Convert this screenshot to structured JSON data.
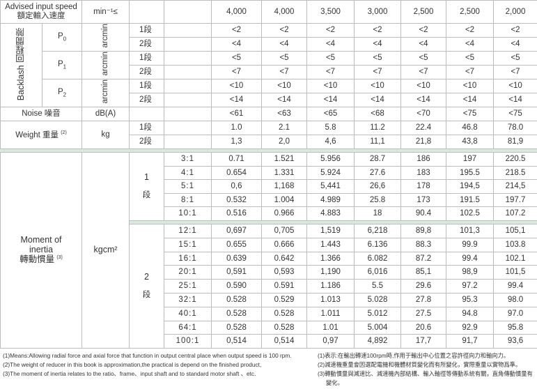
{
  "speed": {
    "label_en": "Advised input speed",
    "label_zh": "額定輸入速度",
    "unit": "min⁻¹≤",
    "values": [
      "4,000",
      "4,000",
      "3,500",
      "3,000",
      "2,500",
      "2,500",
      "2,000"
    ]
  },
  "backlash": {
    "label": "Backlash  回程間隙",
    "groups": [
      {
        "name": "P",
        "sub": "0",
        "unit": "arcmin",
        "rows": [
          {
            "stage": "1段",
            "values": [
              "<2",
              "<2",
              "<2",
              "<2",
              "<2",
              "<2",
              "<2"
            ]
          },
          {
            "stage": "2段",
            "values": [
              "<4",
              "<4",
              "<4",
              "<4",
              "<4",
              "<4",
              "<4"
            ]
          }
        ]
      },
      {
        "name": "P",
        "sub": "1",
        "unit": "arcmin",
        "rows": [
          {
            "stage": "1段",
            "values": [
              "<5",
              "<5",
              "<5",
              "<5",
              "<5",
              "<5",
              "<5"
            ]
          },
          {
            "stage": "2段",
            "values": [
              "<7",
              "<7",
              "<7",
              "<7",
              "<7",
              "<7",
              "<7"
            ]
          }
        ]
      },
      {
        "name": "P",
        "sub": "2",
        "unit": "arcmin",
        "rows": [
          {
            "stage": "1段",
            "values": [
              "<10",
              "<10",
              "<10",
              "<10",
              "<10",
              "<10",
              "<10"
            ]
          },
          {
            "stage": "2段",
            "values": [
              "<14",
              "<14",
              "<14",
              "<14",
              "<14",
              "<14",
              "<14"
            ]
          }
        ]
      }
    ]
  },
  "noise": {
    "label": "Noise 噪音",
    "unit": "dB(A)",
    "values": [
      "<61",
      "<63",
      "<65",
      "<68",
      "<70",
      "<75",
      "<75"
    ]
  },
  "weight": {
    "label": "Weight 重量",
    "note": "(2)",
    "unit": "kg",
    "rows": [
      {
        "stage": "1段",
        "values": [
          "1.0",
          "2.1",
          "5.8",
          "11.2",
          "22.4",
          "46.8",
          "78.0"
        ]
      },
      {
        "stage": "2段",
        "values": [
          "1,3",
          "2,0",
          "4,6",
          "11,1",
          "21,8",
          "43,8",
          "81,9"
        ]
      }
    ]
  },
  "inertia": {
    "label_line1": "Moment of",
    "label_line2": "inertia",
    "label_zh": "轉動慣量",
    "note": "(3)",
    "unit": "kgcm²",
    "stages": [
      {
        "num": "1",
        "char": "段",
        "rows": [
          {
            "ratio": "3:1",
            "values": [
              "0.71",
              "1.521",
              "5.956",
              "28.7",
              "186",
              "197",
              "220.5"
            ]
          },
          {
            "ratio": "4:1",
            "values": [
              "0.654",
              "1.331",
              "5.924",
              "27.6",
              "183",
              "195.5",
              "218.5"
            ]
          },
          {
            "ratio": "5:1",
            "values": [
              "0,6",
              "1,168",
              "5,441",
              "26,6",
              "178",
              "194,5",
              "214,5"
            ]
          },
          {
            "ratio": "8:1",
            "values": [
              "0.532",
              "1.004",
              "4.989",
              "25.8",
              "173",
              "191.5",
              "197.7"
            ]
          },
          {
            "ratio": "10:1",
            "values": [
              "0.516",
              "0.966",
              "4.883",
              "18",
              "90.4",
              "102.5",
              "107.2"
            ]
          }
        ]
      },
      {
        "num": "2",
        "char": "段",
        "rows": [
          {
            "ratio": "12:1",
            "values": [
              "0,697",
              "0,705",
              "1,519",
              "6,218",
              "89,8",
              "101,3",
              "105,1"
            ]
          },
          {
            "ratio": "15:1",
            "values": [
              "0.655",
              "0.666",
              "1.443",
              "6.136",
              "88.3",
              "99.9",
              "103.8"
            ]
          },
          {
            "ratio": "16:1",
            "values": [
              "0.639",
              "0.642",
              "1.366",
              "6.082",
              "87.2",
              "99.4",
              "102.1"
            ]
          },
          {
            "ratio": "20:1",
            "values": [
              "0,591",
              "0,593",
              "1,190",
              "6,016",
              "85,1",
              "98,9",
              "101,5"
            ]
          },
          {
            "ratio": "25:1",
            "values": [
              "0.590",
              "0.591",
              "1.186",
              "5.5",
              "29.6",
              "97.2",
              "99.4"
            ]
          },
          {
            "ratio": "32:1",
            "values": [
              "0.528",
              "0.529",
              "1.013",
              "5.028",
              "27.8",
              "95.3",
              "98.0"
            ]
          },
          {
            "ratio": "40:1",
            "values": [
              "0.528",
              "0.528",
              "1.011",
              "5.012",
              "27.5",
              "94.8",
              "97.0"
            ]
          },
          {
            "ratio": "64:1",
            "values": [
              "0.528",
              "0.528",
              "1.01",
              "5.004",
              "20.6",
              "92.9",
              "95.8"
            ]
          },
          {
            "ratio": "100:1",
            "values": [
              "0,514",
              "0,514",
              "0,97",
              "4,892",
              "17,7",
              "91,7",
              "93,6"
            ]
          }
        ]
      }
    ]
  },
  "notes": {
    "en": [
      "(1)Means:Allowing radial force and axial force that function in output central place when output speed is 100 rpm.",
      "(2)The weight of reducer in this book is approximation,the practical is depend on the finished product,",
      "(3)The moment of inertia relates to the ratio、frame、input shaft and to standard motor shaft 、etc."
    ],
    "zh": [
      "(1)表示:在輸出轉速100rpm時,作用于輸出中心位置之容許徑向力和軸向力。",
      "(2)減速機重量會因選配電機和機體材質變化而有所變化，實際重量以實物爲準。",
      "(3)轉動慣量與減速比、減速機內部結構、輸入軸徑等傳動系統有關，直角傳動慣量有變化。"
    ]
  }
}
